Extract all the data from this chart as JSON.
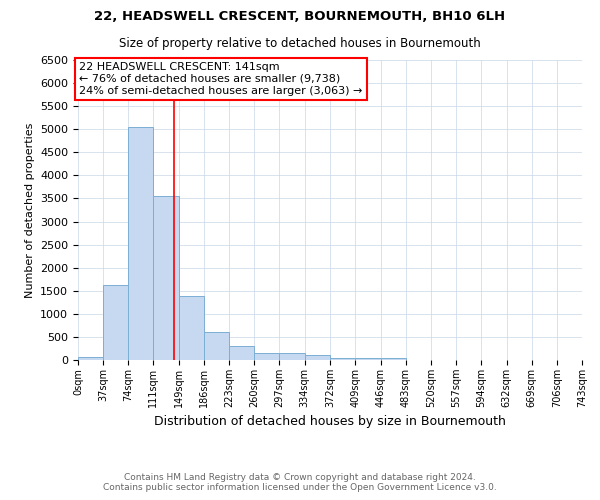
{
  "title1": "22, HEADSWELL CRESCENT, BOURNEMOUTH, BH10 6LH",
  "title2": "Size of property relative to detached houses in Bournemouth",
  "xlabel": "Distribution of detached houses by size in Bournemouth",
  "ylabel": "Number of detached properties",
  "footer1": "Contains HM Land Registry data © Crown copyright and database right 2024.",
  "footer2": "Contains public sector information licensed under the Open Government Licence v3.0.",
  "annotation_line1": "22 HEADSWELL CRESCENT: 141sqm",
  "annotation_line2": "← 76% of detached houses are smaller (9,738)",
  "annotation_line3": "24% of semi-detached houses are larger (3,063) →",
  "property_size": 141,
  "bin_edges": [
    0,
    37,
    74,
    111,
    149,
    186,
    223,
    260,
    297,
    334,
    372,
    409,
    446,
    483,
    520,
    557,
    594,
    632,
    669,
    706,
    743
  ],
  "bar_values": [
    65,
    1620,
    5050,
    3560,
    1390,
    610,
    295,
    155,
    145,
    100,
    50,
    50,
    50,
    0,
    0,
    0,
    0,
    0,
    0,
    0
  ],
  "bar_color": "#c6d9f0",
  "bar_edge_color": "#7bafd4",
  "red_line_x": 141,
  "ylim": [
    0,
    6500
  ],
  "yticks": [
    0,
    500,
    1000,
    1500,
    2000,
    2500,
    3000,
    3500,
    4000,
    4500,
    5000,
    5500,
    6000,
    6500
  ],
  "background_color": "#ffffff",
  "grid_color": "#c8d8e8"
}
